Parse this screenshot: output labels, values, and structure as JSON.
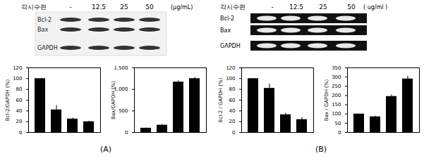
{
  "chart_data": [
    {
      "type": "bar",
      "ylabel": "Bcl-2/GAPDH (%)",
      "categories": [
        null,
        null,
        null,
        null
      ],
      "values": [
        100,
        42,
        25,
        20
      ],
      "errors": [
        0,
        8,
        2,
        1
      ],
      "color": "#000000",
      "ylim": [
        0,
        120
      ],
      "yticks": [
        0,
        20,
        40,
        60,
        80,
        100,
        120
      ],
      "tick_labels": "y"
    },
    {
      "type": "bar",
      "ylabel": "Bax/GAPDH (%)",
      "categories": [
        null,
        null,
        null,
        null
      ],
      "values": [
        100,
        170,
        1170,
        1250
      ],
      "errors": [
        5,
        15,
        30,
        30
      ],
      "color": "#000000",
      "ylim": [
        0,
        1500
      ],
      "yticks": [
        0,
        500,
        1000,
        1500
      ],
      "tick_labels": "y"
    },
    {
      "type": "bar",
      "ylabel": "Bcl-2 / GAPDH (%)",
      "categories": [
        null,
        null,
        null,
        null
      ],
      "values": [
        100,
        82,
        33,
        24
      ],
      "errors": [
        0,
        8,
        3,
        4
      ],
      "color": "#000000",
      "ylim": [
        0,
        120
      ],
      "yticks": [
        0,
        20,
        40,
        60,
        80,
        100,
        120
      ],
      "tick_labels": "y"
    },
    {
      "type": "bar",
      "ylabel": "Bax / GAPDH (%)",
      "categories": [
        null,
        null,
        null,
        null
      ],
      "values": [
        100,
        85,
        195,
        290
      ],
      "errors": [
        0,
        4,
        8,
        15
      ],
      "color": "#000000",
      "ylim": [
        0,
        350
      ],
      "yticks": [
        0,
        50,
        100,
        150,
        200,
        250,
        300,
        350
      ],
      "tick_labels": "y"
    }
  ],
  "blots": [
    {
      "panel": "(A)",
      "treatment": "각시수련",
      "lanes": [
        "-",
        "12.5",
        "25",
        "50"
      ],
      "unit": "(μg/mL)",
      "bands": [
        "Bcl-2",
        "Bax",
        "GAPDH"
      ]
    },
    {
      "panel": "(B)",
      "treatment": "각시수련",
      "lanes": [
        "-",
        "12.5",
        "25",
        "50"
      ],
      "unit": "( ug/ml )",
      "bands": [
        "Bcl-2",
        "Bax",
        "GAPDH"
      ]
    }
  ]
}
